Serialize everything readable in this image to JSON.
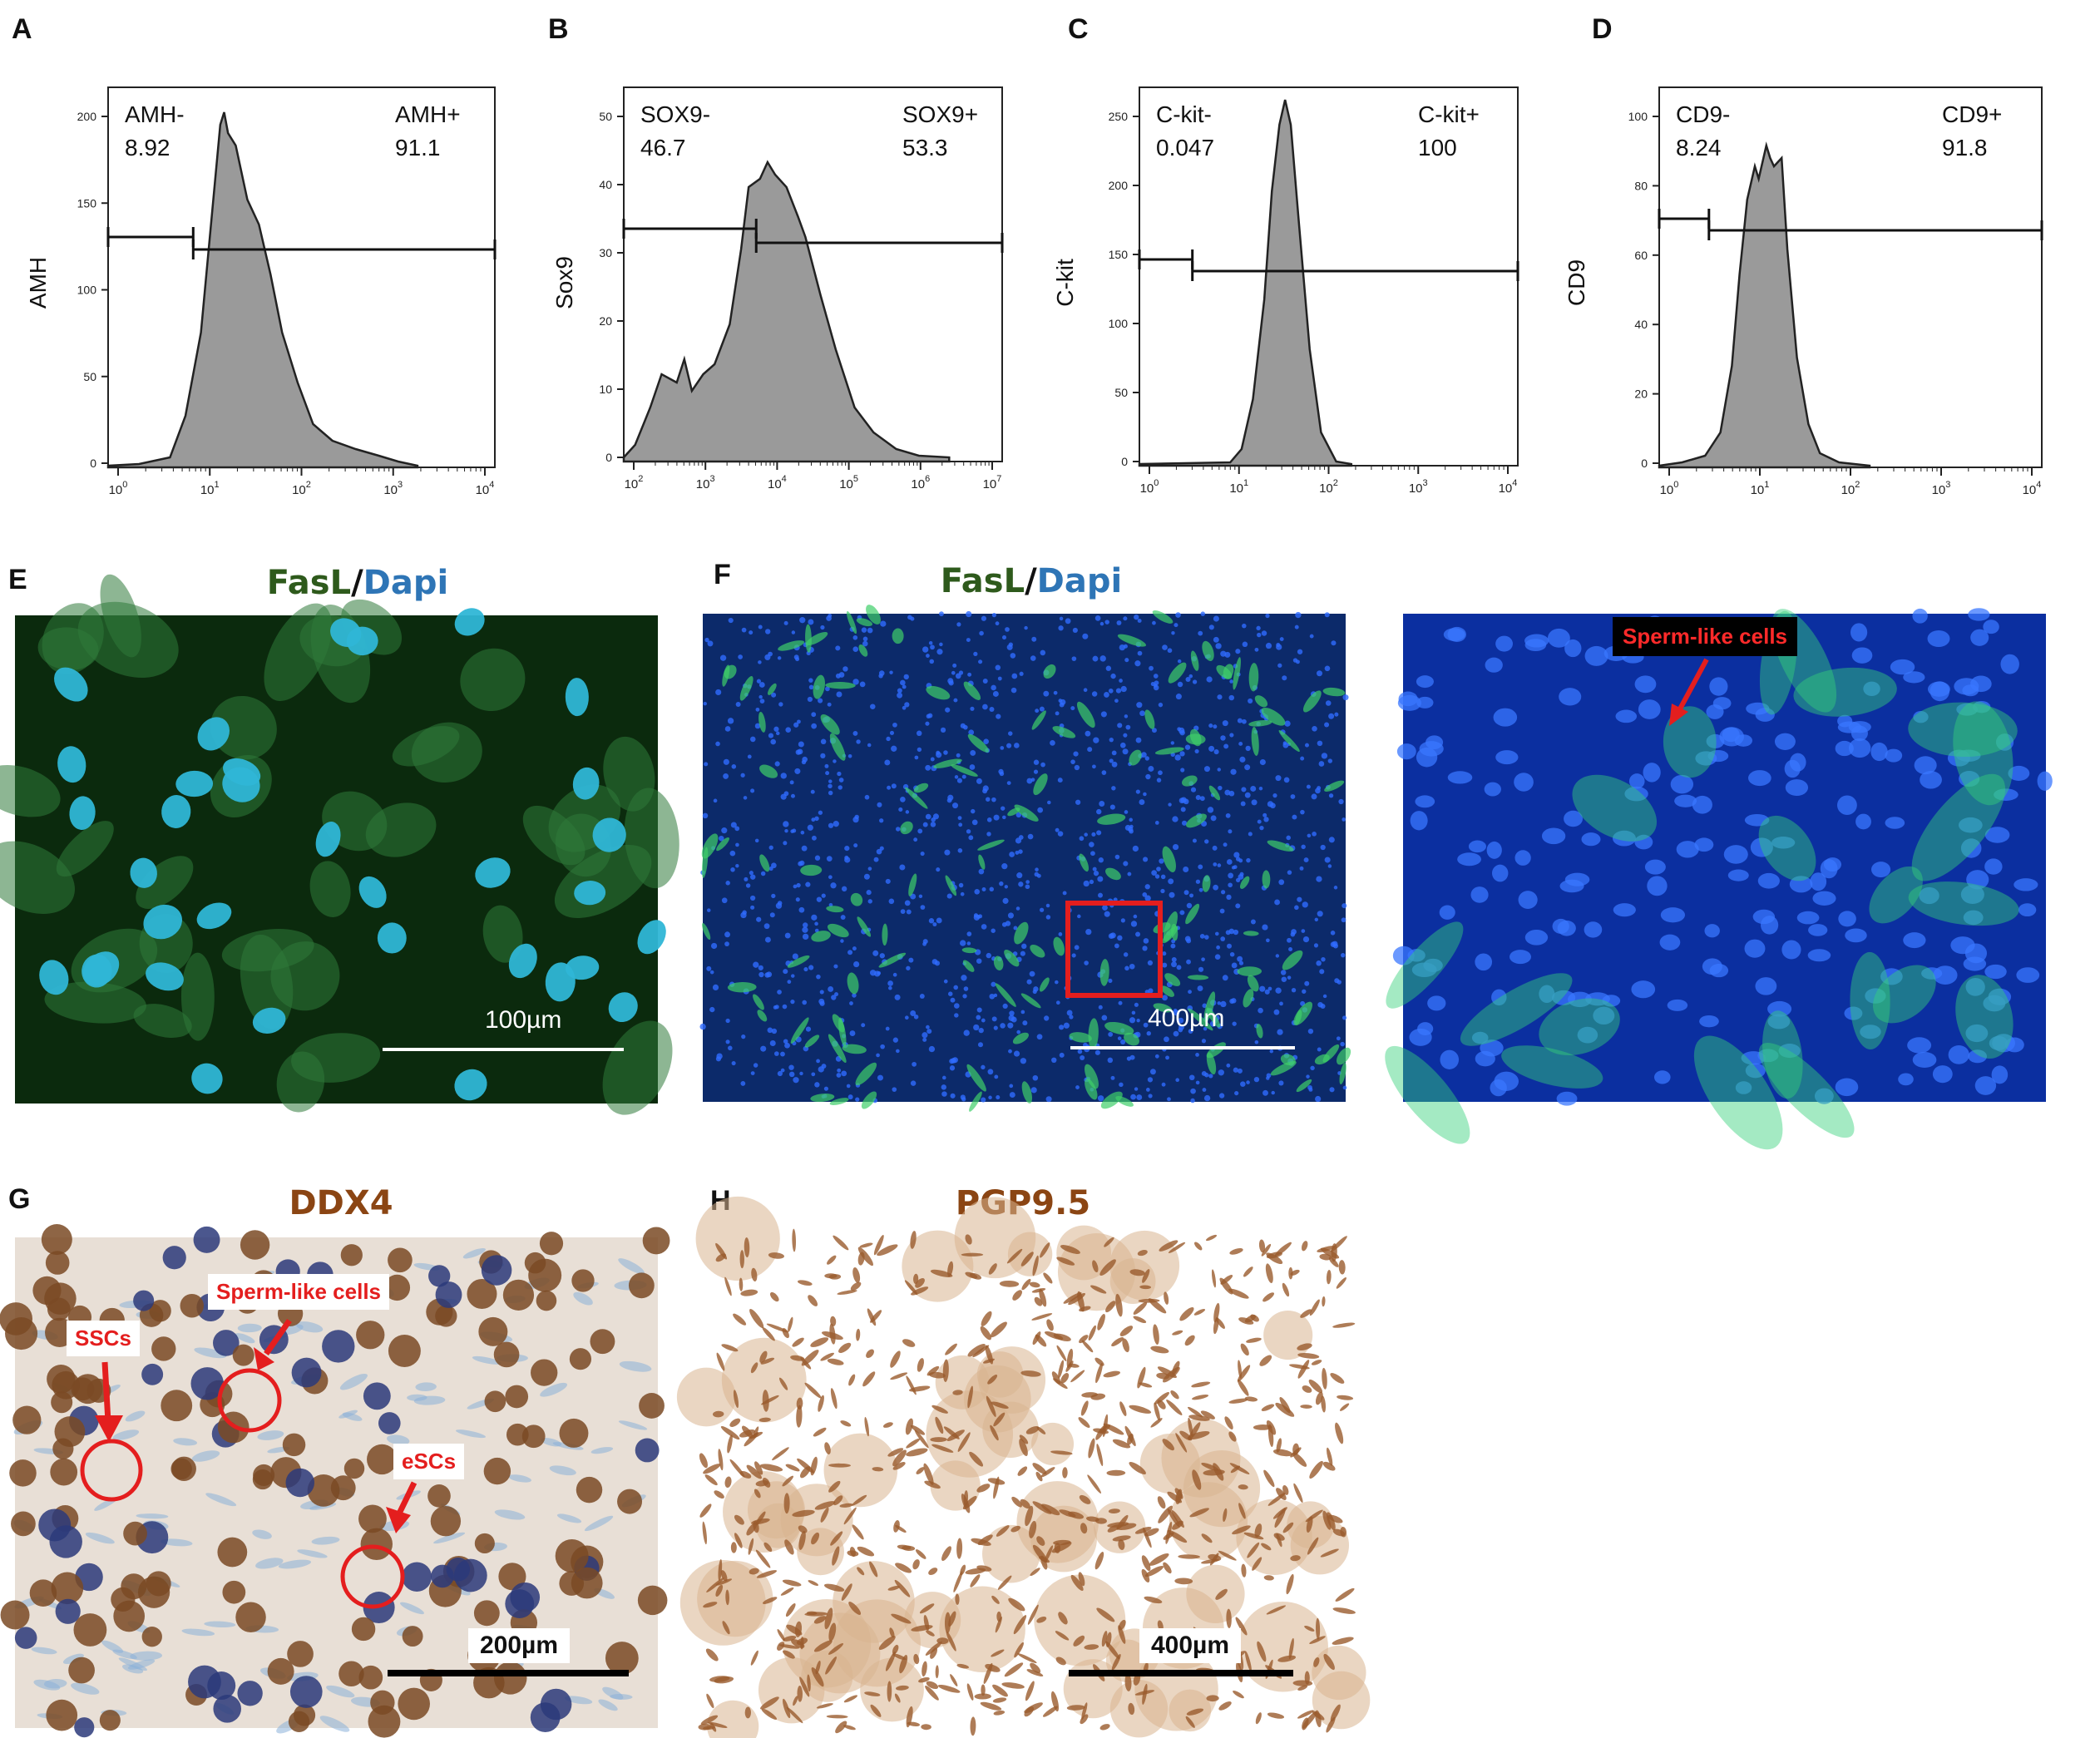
{
  "flow_panels": [
    {
      "letter": "A",
      "ylabel": "AMH",
      "neg_label": "AMH-",
      "neg_value": "8.92",
      "pos_label": "AMH+",
      "pos_value": "91.1",
      "yticks": [
        "0",
        "50",
        "100",
        "150",
        "200"
      ],
      "xticks": [
        {
          "b": "10",
          "e": "0"
        },
        {
          "b": "10",
          "e": "1"
        },
        {
          "b": "10",
          "e": "2"
        },
        {
          "b": "10",
          "e": "3"
        },
        {
          "b": "10",
          "e": "4"
        }
      ]
    },
    {
      "letter": "B",
      "ylabel": "Sox9",
      "neg_label": "SOX9-",
      "neg_value": "46.7",
      "pos_label": "SOX9+",
      "pos_value": "53.3",
      "yticks": [
        "0",
        "10",
        "20",
        "30",
        "40",
        "50"
      ],
      "xticks": [
        {
          "b": "10",
          "e": "2"
        },
        {
          "b": "10",
          "e": "3"
        },
        {
          "b": "10",
          "e": "4"
        },
        {
          "b": "10",
          "e": "5"
        },
        {
          "b": "10",
          "e": "6"
        },
        {
          "b": "10",
          "e": "7"
        }
      ]
    },
    {
      "letter": "C",
      "ylabel": "C-kit",
      "neg_label": "C-kit-",
      "neg_value": "0.047",
      "pos_label": "C-kit+",
      "pos_value": "100",
      "yticks": [
        "0",
        "50",
        "100",
        "150",
        "200",
        "250"
      ],
      "xticks": [
        {
          "b": "10",
          "e": "0"
        },
        {
          "b": "10",
          "e": "1"
        },
        {
          "b": "10",
          "e": "2"
        },
        {
          "b": "10",
          "e": "3"
        },
        {
          "b": "10",
          "e": "4"
        }
      ]
    },
    {
      "letter": "D",
      "ylabel": "CD9",
      "neg_label": "CD9-",
      "neg_value": "8.24",
      "pos_label": "CD9+",
      "pos_value": "91.8",
      "yticks": [
        "0",
        "20",
        "40",
        "60",
        "80",
        "100"
      ],
      "xticks": [
        {
          "b": "10",
          "e": "0"
        },
        {
          "b": "10",
          "e": "1"
        },
        {
          "b": "10",
          "e": "2"
        },
        {
          "b": "10",
          "e": "3"
        },
        {
          "b": "10",
          "e": "4"
        }
      ]
    }
  ],
  "micro_panels": {
    "E": {
      "letter": "E",
      "title_a": "FasL",
      "slash": "/",
      "title_b": "Dapi",
      "scale": "100µm"
    },
    "F": {
      "letter": "F",
      "title_a": "FasL",
      "slash": "/",
      "title_b": "Dapi",
      "scale": "400µm",
      "callout": "Sperm-like cells"
    },
    "G": {
      "letter": "G",
      "title": "DDX4",
      "scale": "200µm",
      "callouts": [
        "SSCs",
        "Sperm-like cells",
        "eSCs"
      ]
    },
    "H": {
      "letter": "H",
      "title": "PGP9.5",
      "scale": "400µm"
    }
  },
  "colors": {
    "fasl_green": "#2e5a1c",
    "dapi_blue": "#2e75b6",
    "ihc_brown": "#8b4513",
    "annotation_red": "#e41e1e",
    "histogram_fill": "#9a9a9a"
  }
}
